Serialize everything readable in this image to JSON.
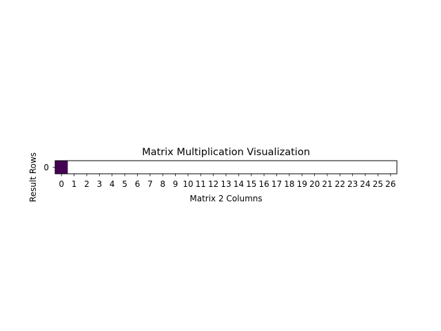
{
  "chart_data": {
    "type": "heatmap",
    "title": "Matrix Multiplication Visualization",
    "xlabel": "Matrix 2 Columns",
    "ylabel": "Result Rows",
    "x_ticks": [
      "0",
      "1",
      "2",
      "3",
      "4",
      "5",
      "6",
      "7",
      "8",
      "9",
      "10",
      "11",
      "12",
      "13",
      "14",
      "15",
      "16",
      "17",
      "18",
      "19",
      "20",
      "21",
      "22",
      "23",
      "24",
      "25",
      "26"
    ],
    "y_ticks": [
      "0"
    ],
    "xlim": [
      -0.5,
      26.5
    ],
    "ylim": [
      -0.5,
      0.5
    ],
    "cells": [
      {
        "row": 0,
        "col": 0,
        "color": "#440154"
      }
    ],
    "background_color": "#ffffff",
    "grid": false,
    "legend": "none"
  }
}
